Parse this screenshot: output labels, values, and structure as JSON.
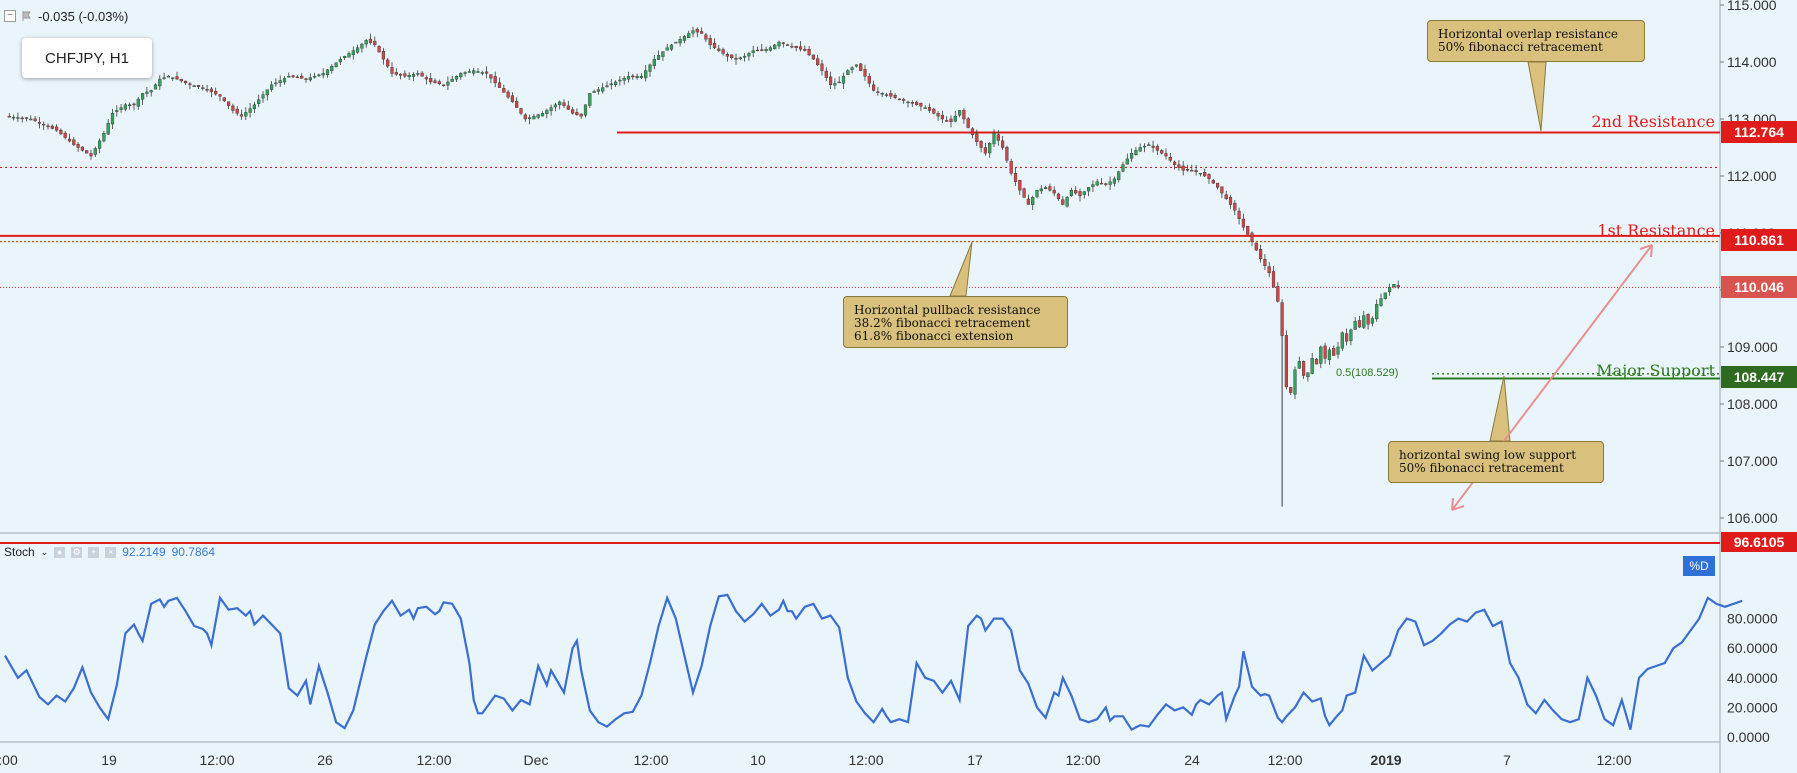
{
  "header": {
    "change": "-0.035 (-0.03%)",
    "symbol": "CHFJPY, H1"
  },
  "colors": {
    "bg": "#eaf5fb",
    "resistance": "#e01b1b",
    "support": "#2e7a1f",
    "stoch": "#3a6fcf",
    "callout": "#d9c07c",
    "up": "#33a35b",
    "down": "#d04545"
  },
  "price_axis": {
    "ticks": [
      "115.000",
      "114.000",
      "113.000",
      "112.000",
      "111.000",
      "110.000",
      "109.000",
      "108.000",
      "107.000",
      "106.000"
    ]
  },
  "stoch_axis": {
    "ticks": [
      "80.0000",
      "60.0000",
      "40.0000",
      "20.0000",
      "0.0000"
    ]
  },
  "time_axis": {
    "ticks": [
      ":00",
      "19",
      "12:00",
      "26",
      "12:00",
      "Dec",
      "12:00",
      "10",
      "12:00",
      "17",
      "12:00",
      "24",
      "12:00",
      "2019",
      "7",
      "12:00"
    ]
  },
  "levels": {
    "second_resistance": {
      "label": "2nd Resistance",
      "price": "112.764"
    },
    "first_resistance": {
      "label": "1st Resistance",
      "price": "110.861"
    },
    "major_support": {
      "label": "Major Support",
      "price": "108.447"
    },
    "current": {
      "price": "110.046"
    },
    "fib": {
      "label": "0.5(108.529)"
    }
  },
  "callouts": {
    "overlap": "Horizontal overlap resistance\n50% fibonacci retracement",
    "pullback": "Horizontal pullback resistance\n38.2% fibonacci retracement\n61.8% fibonacci extension",
    "swing": "horizontal swing low support\n50% fibonacci retracement"
  },
  "stoch": {
    "name": "Stoch",
    "v1": "92.2149",
    "v2": "90.7864",
    "tag": "96.6105",
    "pct_label": "%D"
  },
  "chart_data": {
    "type": "candlestick",
    "ylim": [
      105.8,
      115.1
    ],
    "close_path": [
      [
        0,
        113.05
      ],
      [
        6,
        113.0
      ],
      [
        9,
        112.9
      ],
      [
        12,
        112.8
      ],
      [
        16,
        112.55
      ],
      [
        20,
        112.35
      ],
      [
        23,
        112.75
      ],
      [
        25,
        113.1
      ],
      [
        28,
        113.25
      ],
      [
        30,
        113.25
      ],
      [
        32,
        113.45
      ],
      [
        34,
        113.5
      ],
      [
        36,
        113.7
      ],
      [
        38,
        113.75
      ],
      [
        40,
        113.7
      ],
      [
        43,
        113.6
      ],
      [
        46,
        113.55
      ],
      [
        50,
        113.4
      ],
      [
        53,
        113.15
      ],
      [
        55,
        113.05
      ],
      [
        58,
        113.25
      ],
      [
        62,
        113.6
      ],
      [
        66,
        113.75
      ],
      [
        70,
        113.7
      ],
      [
        74,
        113.8
      ],
      [
        78,
        114.05
      ],
      [
        82,
        114.25
      ],
      [
        84,
        114.38
      ],
      [
        86,
        114.3
      ],
      [
        88,
        114.05
      ],
      [
        90,
        113.8
      ],
      [
        93,
        113.75
      ],
      [
        96,
        113.8
      ],
      [
        99,
        113.65
      ],
      [
        102,
        113.6
      ],
      [
        106,
        113.8
      ],
      [
        109,
        113.85
      ],
      [
        112,
        113.8
      ],
      [
        115,
        113.55
      ],
      [
        118,
        113.3
      ],
      [
        121,
        113.0
      ],
      [
        123,
        113.05
      ],
      [
        125,
        113.1
      ],
      [
        127,
        113.2
      ],
      [
        129,
        113.3
      ],
      [
        132,
        113.1
      ],
      [
        134,
        113.05
      ],
      [
        136,
        113.45
      ],
      [
        139,
        113.55
      ],
      [
        142,
        113.65
      ],
      [
        145,
        113.75
      ],
      [
        148,
        113.75
      ],
      [
        151,
        114.05
      ],
      [
        154,
        114.25
      ],
      [
        157,
        114.4
      ],
      [
        160,
        114.55
      ],
      [
        162,
        114.5
      ],
      [
        164,
        114.3
      ],
      [
        166,
        114.2
      ],
      [
        168,
        114.1
      ],
      [
        170,
        114.05
      ],
      [
        172,
        114.1
      ],
      [
        174,
        114.2
      ],
      [
        176,
        114.2
      ],
      [
        178,
        114.25
      ],
      [
        180,
        114.35
      ],
      [
        182,
        114.3
      ],
      [
        184,
        114.25
      ],
      [
        186,
        114.2
      ],
      [
        188,
        114.05
      ],
      [
        190,
        113.85
      ],
      [
        192,
        113.6
      ],
      [
        194,
        113.65
      ],
      [
        196,
        113.85
      ],
      [
        198,
        113.95
      ],
      [
        200,
        113.75
      ],
      [
        202,
        113.5
      ],
      [
        204,
        113.45
      ],
      [
        206,
        113.4
      ],
      [
        208,
        113.35
      ],
      [
        210,
        113.3
      ],
      [
        212,
        113.25
      ],
      [
        214,
        113.2
      ],
      [
        216,
        113.1
      ],
      [
        218,
        113.0
      ],
      [
        220,
        112.95
      ],
      [
        222,
        113.15
      ],
      [
        224,
        112.85
      ],
      [
        226,
        112.6
      ],
      [
        228,
        112.4
      ],
      [
        230,
        112.75
      ],
      [
        232,
        112.5
      ],
      [
        234,
        112.05
      ],
      [
        236,
        111.75
      ],
      [
        238,
        111.5
      ],
      [
        240,
        111.75
      ],
      [
        242,
        111.8
      ],
      [
        244,
        111.7
      ],
      [
        246,
        111.5
      ],
      [
        248,
        111.75
      ],
      [
        250,
        111.65
      ],
      [
        252,
        111.8
      ],
      [
        254,
        111.9
      ],
      [
        256,
        111.85
      ],
      [
        258,
        111.95
      ],
      [
        260,
        112.2
      ],
      [
        262,
        112.4
      ],
      [
        264,
        112.5
      ],
      [
        266,
        112.55
      ],
      [
        268,
        112.45
      ],
      [
        270,
        112.35
      ],
      [
        272,
        112.2
      ],
      [
        274,
        112.1
      ],
      [
        276,
        112.1
      ],
      [
        278,
        112.05
      ],
      [
        280,
        111.95
      ],
      [
        282,
        111.8
      ],
      [
        284,
        111.6
      ],
      [
        286,
        111.4
      ],
      [
        288,
        111.1
      ],
      [
        290,
        110.85
      ],
      [
        292,
        110.55
      ],
      [
        294,
        110.3
      ],
      [
        296,
        109.8
      ],
      [
        297,
        109.2
      ],
      [
        298,
        108.3
      ],
      [
        299,
        108.2
      ],
      [
        300,
        108.6
      ],
      [
        301,
        108.75
      ],
      [
        302,
        108.5
      ],
      [
        303,
        108.55
      ],
      [
        304,
        108.8
      ],
      [
        305,
        108.7
      ],
      [
        306,
        109.0
      ],
      [
        307,
        108.8
      ],
      [
        308,
        108.95
      ],
      [
        309,
        108.85
      ],
      [
        310,
        109.0
      ],
      [
        311,
        109.25
      ],
      [
        312,
        109.1
      ],
      [
        313,
        109.3
      ],
      [
        314,
        109.45
      ],
      [
        315,
        109.35
      ],
      [
        316,
        109.55
      ],
      [
        317,
        109.4
      ],
      [
        318,
        109.5
      ],
      [
        319,
        109.75
      ],
      [
        320,
        109.85
      ],
      [
        321,
        109.95
      ],
      [
        322,
        110.05
      ],
      [
        323,
        110.1
      ],
      [
        324,
        110.05
      ]
    ],
    "stoch_path": [
      [
        0,
        55
      ],
      [
        3,
        40
      ],
      [
        5,
        45
      ],
      [
        8,
        27
      ],
      [
        10,
        22
      ],
      [
        12,
        28
      ],
      [
        14,
        24
      ],
      [
        16,
        33
      ],
      [
        18,
        47
      ],
      [
        20,
        30
      ],
      [
        22,
        20
      ],
      [
        24,
        12
      ],
      [
        26,
        35
      ],
      [
        28,
        70
      ],
      [
        30,
        76
      ],
      [
        31,
        70
      ],
      [
        32,
        65
      ],
      [
        34,
        90
      ],
      [
        36,
        93
      ],
      [
        37,
        88
      ],
      [
        38,
        92
      ],
      [
        40,
        94
      ],
      [
        42,
        85
      ],
      [
        44,
        75
      ],
      [
        46,
        73
      ],
      [
        47,
        70
      ],
      [
        48,
        62
      ],
      [
        50,
        94
      ],
      [
        52,
        86
      ],
      [
        54,
        87
      ],
      [
        56,
        82
      ],
      [
        57,
        85
      ],
      [
        58,
        76
      ],
      [
        60,
        82
      ],
      [
        62,
        76
      ],
      [
        64,
        70
      ],
      [
        66,
        33
      ],
      [
        68,
        28
      ],
      [
        70,
        38
      ],
      [
        71,
        22
      ],
      [
        73,
        48
      ],
      [
        75,
        30
      ],
      [
        77,
        10
      ],
      [
        79,
        6
      ],
      [
        81,
        18
      ],
      [
        84,
        54
      ],
      [
        86,
        76
      ],
      [
        88,
        85
      ],
      [
        90,
        92
      ],
      [
        92,
        82
      ],
      [
        94,
        86
      ],
      [
        95,
        80
      ],
      [
        96,
        87
      ],
      [
        98,
        88
      ],
      [
        100,
        83
      ],
      [
        101,
        85
      ],
      [
        102,
        91
      ],
      [
        104,
        90
      ],
      [
        106,
        80
      ],
      [
        108,
        50
      ],
      [
        109,
        25
      ],
      [
        110,
        16
      ],
      [
        111,
        16
      ],
      [
        112,
        20
      ],
      [
        114,
        28
      ],
      [
        116,
        26
      ],
      [
        118,
        18
      ],
      [
        120,
        25
      ],
      [
        122,
        22
      ],
      [
        124,
        48
      ],
      [
        126,
        35
      ],
      [
        127,
        45
      ],
      [
        128,
        40
      ],
      [
        130,
        30
      ],
      [
        132,
        60
      ],
      [
        133,
        65
      ],
      [
        134,
        45
      ],
      [
        136,
        18
      ],
      [
        138,
        10
      ],
      [
        140,
        7
      ],
      [
        142,
        12
      ],
      [
        144,
        16
      ],
      [
        146,
        17
      ],
      [
        148,
        28
      ],
      [
        150,
        50
      ],
      [
        152,
        75
      ],
      [
        154,
        94
      ],
      [
        156,
        80
      ],
      [
        158,
        55
      ],
      [
        160,
        30
      ],
      [
        162,
        48
      ],
      [
        164,
        75
      ],
      [
        166,
        95
      ],
      [
        168,
        96
      ],
      [
        170,
        85
      ],
      [
        172,
        78
      ],
      [
        174,
        83
      ],
      [
        176,
        90
      ],
      [
        178,
        82
      ],
      [
        180,
        86
      ],
      [
        181,
        92
      ],
      [
        182,
        85
      ],
      [
        183,
        85
      ],
      [
        184,
        80
      ],
      [
        186,
        88
      ],
      [
        188,
        90
      ],
      [
        190,
        80
      ],
      [
        192,
        82
      ],
      [
        194,
        74
      ],
      [
        196,
        40
      ],
      [
        198,
        24
      ],
      [
        200,
        16
      ],
      [
        202,
        10
      ],
      [
        204,
        19
      ],
      [
        205,
        14
      ],
      [
        206,
        10
      ],
      [
        208,
        12
      ],
      [
        210,
        10
      ],
      [
        212,
        50
      ],
      [
        214,
        40
      ],
      [
        216,
        38
      ],
      [
        218,
        30
      ],
      [
        220,
        38
      ],
      [
        222,
        25
      ],
      [
        224,
        75
      ],
      [
        226,
        82
      ],
      [
        227,
        80
      ],
      [
        228,
        72
      ],
      [
        230,
        80
      ],
      [
        232,
        80
      ],
      [
        234,
        72
      ],
      [
        236,
        45
      ],
      [
        238,
        36
      ],
      [
        240,
        20
      ],
      [
        242,
        13
      ],
      [
        244,
        30
      ],
      [
        245,
        28
      ],
      [
        246,
        40
      ],
      [
        248,
        28
      ],
      [
        250,
        12
      ],
      [
        252,
        10
      ],
      [
        254,
        12
      ],
      [
        256,
        20
      ],
      [
        257,
        11
      ],
      [
        258,
        14
      ],
      [
        260,
        14
      ],
      [
        262,
        5
      ],
      [
        264,
        8
      ],
      [
        266,
        7
      ],
      [
        268,
        15
      ],
      [
        270,
        22
      ],
      [
        272,
        18
      ],
      [
        274,
        20
      ],
      [
        276,
        15
      ],
      [
        277,
        22
      ],
      [
        278,
        25
      ],
      [
        280,
        22
      ],
      [
        282,
        28
      ],
      [
        283,
        30
      ],
      [
        284,
        12
      ],
      [
        286,
        28
      ],
      [
        287,
        34
      ],
      [
        288,
        58
      ],
      [
        290,
        34
      ],
      [
        292,
        28
      ],
      [
        293,
        29
      ],
      [
        294,
        28
      ],
      [
        296,
        13
      ],
      [
        297,
        10
      ],
      [
        298,
        14
      ],
      [
        300,
        20
      ],
      [
        302,
        30
      ],
      [
        304,
        24
      ],
      [
        306,
        26
      ],
      [
        307,
        14
      ],
      [
        308,
        8
      ],
      [
        310,
        15
      ],
      [
        311,
        18
      ],
      [
        312,
        28
      ],
      [
        314,
        30
      ],
      [
        316,
        55
      ],
      [
        318,
        45
      ],
      [
        320,
        50
      ],
      [
        322,
        55
      ],
      [
        324,
        72
      ],
      [
        326,
        80
      ],
      [
        328,
        78
      ],
      [
        330,
        62
      ],
      [
        332,
        65
      ],
      [
        334,
        70
      ],
      [
        336,
        76
      ],
      [
        338,
        80
      ],
      [
        340,
        78
      ],
      [
        342,
        84
      ],
      [
        344,
        86
      ],
      [
        346,
        75
      ],
      [
        348,
        78
      ],
      [
        350,
        50
      ],
      [
        352,
        40
      ],
      [
        354,
        22
      ],
      [
        356,
        16
      ],
      [
        358,
        25
      ],
      [
        360,
        18
      ],
      [
        362,
        12
      ],
      [
        364,
        10
      ],
      [
        366,
        12
      ],
      [
        368,
        40
      ],
      [
        370,
        28
      ],
      [
        372,
        12
      ],
      [
        374,
        8
      ],
      [
        376,
        25
      ],
      [
        378,
        5
      ],
      [
        380,
        40
      ],
      [
        382,
        46
      ],
      [
        384,
        48
      ],
      [
        386,
        50
      ],
      [
        388,
        60
      ],
      [
        390,
        64
      ],
      [
        392,
        72
      ],
      [
        394,
        80
      ],
      [
        396,
        94
      ],
      [
        398,
        90
      ],
      [
        400,
        88
      ],
      [
        402,
        90
      ],
      [
        404,
        92
      ]
    ]
  }
}
